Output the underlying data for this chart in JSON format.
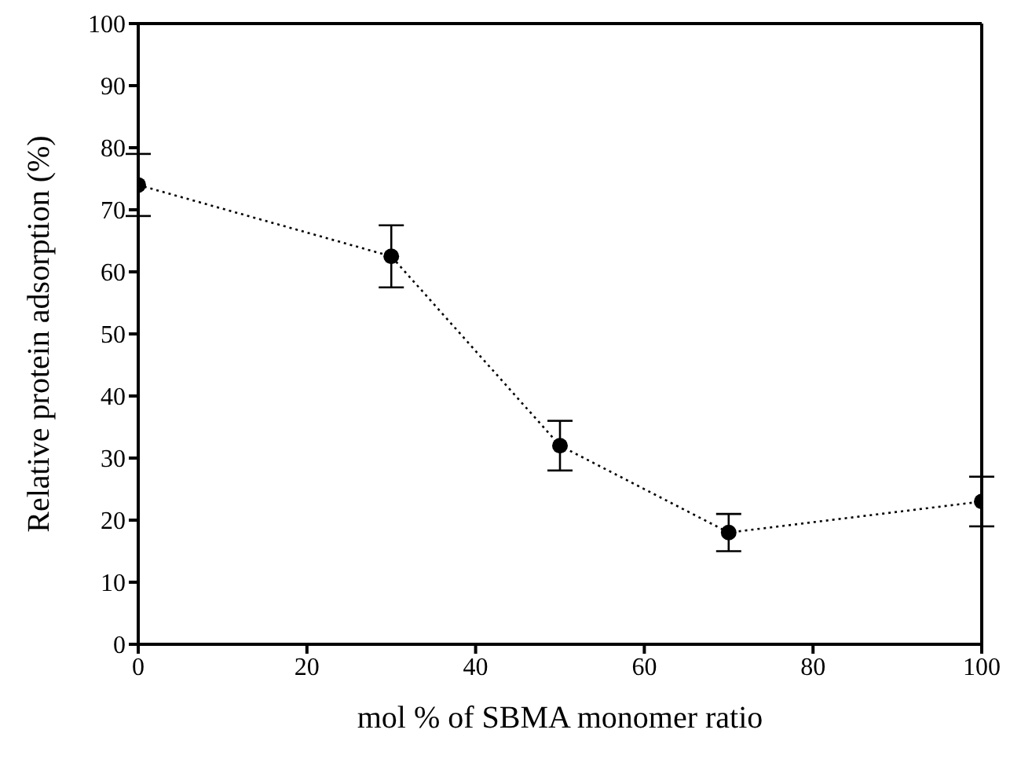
{
  "chart_data": {
    "type": "line",
    "xlabel": "mol % of SBMA monomer ratio",
    "ylabel": "Relative protein adsorption (%)",
    "x": [
      0,
      30,
      50,
      70,
      100
    ],
    "series": [
      {
        "color": "#000000",
        "values": [
          74,
          62.5,
          32,
          18,
          23
        ],
        "errors": [
          5,
          5,
          4,
          3,
          4
        ]
      }
    ],
    "marker": "circle",
    "line_style": "dotted",
    "xlim": [
      0,
      100
    ],
    "xticks": [
      0,
      20,
      40,
      60,
      80,
      100
    ],
    "ylim": [
      0,
      100
    ],
    "yticks": [
      0,
      10,
      20,
      30,
      40,
      50,
      60,
      70,
      80,
      90,
      100
    ],
    "grid": false,
    "legend": false
  }
}
